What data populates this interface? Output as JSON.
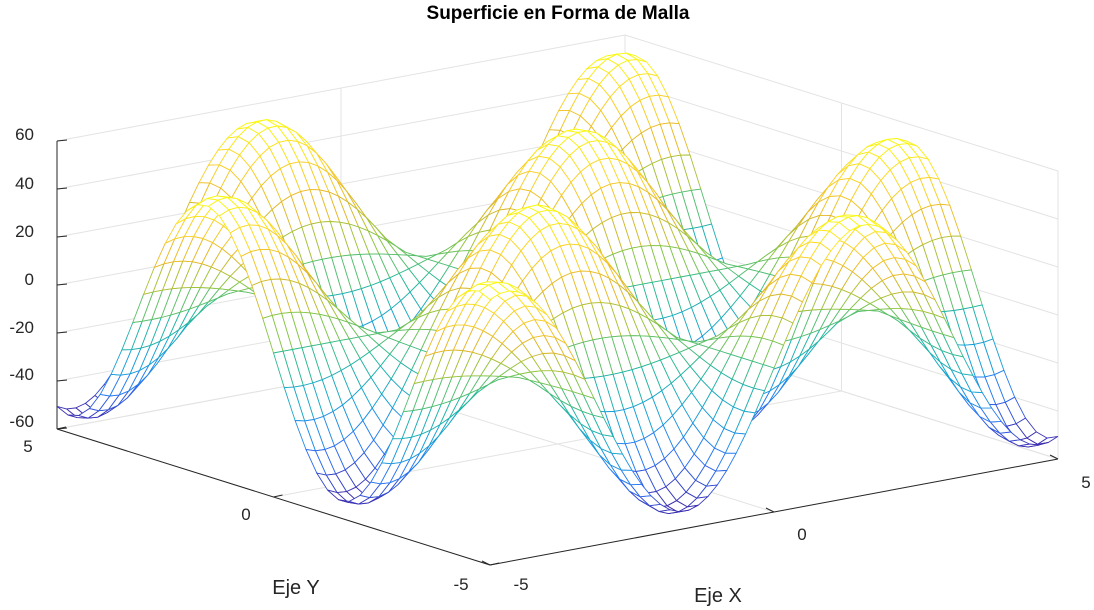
{
  "chart_data": {
    "type": "mesh",
    "title": "Superficie en Forma de Malla",
    "xlabel": "Eje X",
    "ylabel": "Eje Y",
    "zlabel": "",
    "xlim": [
      -5,
      5
    ],
    "ylim": [
      -5,
      5
    ],
    "zlim": [
      -60,
      60
    ],
    "x_ticks": [
      "-5",
      "0",
      "5"
    ],
    "y_ticks": [
      "-5",
      "0",
      "5"
    ],
    "z_ticks": [
      "-60",
      "-40",
      "-20",
      "0",
      "20",
      "40",
      "60"
    ],
    "grid": true,
    "colormap": "parula",
    "colormap_colors": [
      "#3e26a8",
      "#2c73f9",
      "#18a3d6",
      "#25b99a",
      "#8fc640",
      "#e6b729",
      "#fbd42a",
      "#f9fb0e"
    ],
    "surface": {
      "function": "z = 55*sin(x)*sin(y)",
      "z_range": [
        -55,
        55
      ],
      "x_samples": 61,
      "y_samples": 41
    }
  }
}
